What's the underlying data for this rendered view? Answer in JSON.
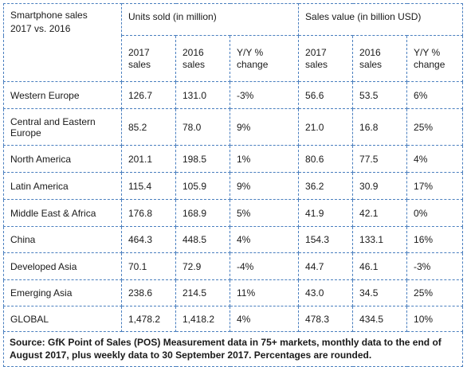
{
  "table": {
    "title_line1": "Smartphone sales",
    "title_line2": "2017 vs. 2016",
    "group_units": "Units sold (in million)",
    "group_value": "Sales value (in billion USD)",
    "sub_headers": [
      {
        "line1": "2017",
        "line2": "sales"
      },
      {
        "line1": "2016",
        "line2": "sales"
      },
      {
        "line1": "Y/Y %",
        "line2": "change"
      },
      {
        "line1": "2017",
        "line2": "sales"
      },
      {
        "line1": "2016",
        "line2": "sales"
      },
      {
        "line1": "Y/Y %",
        "line2": "change"
      }
    ],
    "rows": [
      {
        "region": "Western Europe",
        "cells": [
          "126.7",
          "131.0",
          "-3%",
          "56.6",
          "53.5",
          "6%"
        ]
      },
      {
        "region": "Central and Eastern Europe",
        "cells": [
          "85.2",
          "78.0",
          "9%",
          "21.0",
          "16.8",
          "25%"
        ]
      },
      {
        "region": "North America",
        "cells": [
          "201.1",
          "198.5",
          "1%",
          "80.6",
          "77.5",
          "4%"
        ]
      },
      {
        "region": "Latin America",
        "cells": [
          "115.4",
          "105.9",
          "9%",
          "36.2",
          "30.9",
          "17%"
        ]
      },
      {
        "region": "Middle East & Africa",
        "cells": [
          "176.8",
          "168.9",
          "5%",
          "41.9",
          "42.1",
          "0%"
        ]
      },
      {
        "region": "China",
        "cells": [
          "464.3",
          "448.5",
          "4%",
          "154.3",
          "133.1",
          "16%"
        ]
      },
      {
        "region": "Developed Asia",
        "cells": [
          "70.1",
          "72.9",
          "-4%",
          "44.7",
          "46.1",
          "-3%"
        ]
      },
      {
        "region": "Emerging Asia",
        "cells": [
          "238.6",
          "214.5",
          "11%",
          "43.0",
          "34.5",
          "25%"
        ]
      },
      {
        "region": "GLOBAL",
        "cells": [
          "1,478.2",
          "1,418.2",
          "4%",
          "478.3",
          "434.5",
          "10%"
        ]
      }
    ],
    "source": "Source: GfK Point of Sales (POS) Measurement data in 75+ markets, monthly data to the end of August 2017, plus weekly data to 30 September 2017. Percentages are rounded."
  }
}
